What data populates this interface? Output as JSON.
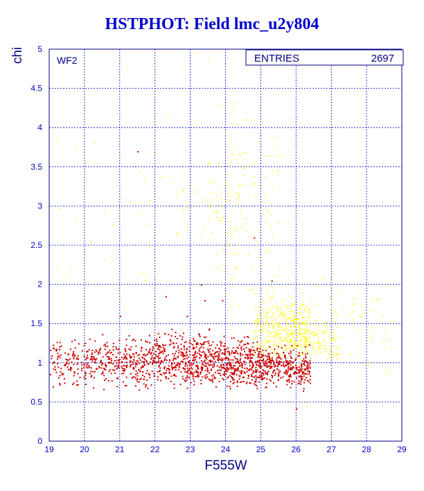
{
  "chart_data": {
    "type": "scatter",
    "title": "HSTPHOT: Field lmc_u2y804",
    "xlabel": "F555W",
    "ylabel": "chi",
    "xlim": [
      19,
      29
    ],
    "ylim": [
      0,
      5
    ],
    "xticks": [
      "19",
      "20",
      "21",
      "22",
      "23",
      "24",
      "25",
      "26",
      "27",
      "28",
      "29"
    ],
    "yticks": [
      "0",
      "0.5",
      "1",
      "1.5",
      "2",
      "2.5",
      "3",
      "3.5",
      "4",
      "4.5",
      "5"
    ],
    "grid": true,
    "panel_label": "WF2",
    "stats_box": {
      "label": "ENTRIES",
      "value": "2697"
    },
    "series": [
      {
        "color": "#cc0000",
        "description_visible": false,
        "clusters": [
          {
            "x": [
              19.0,
              20.0
            ],
            "y": [
              0.6,
              1.4
            ],
            "n": 110
          },
          {
            "x": [
              20.0,
              21.0
            ],
            "y": [
              0.6,
              1.45
            ],
            "n": 150
          },
          {
            "x": [
              21.0,
              22.0
            ],
            "y": [
              0.6,
              1.45
            ],
            "n": 190
          },
          {
            "x": [
              22.0,
              23.0
            ],
            "y": [
              0.55,
              1.5
            ],
            "n": 230
          },
          {
            "x": [
              23.0,
              24.0
            ],
            "y": [
              0.55,
              1.5
            ],
            "n": 270
          },
          {
            "x": [
              24.0,
              25.0
            ],
            "y": [
              0.55,
              1.45
            ],
            "n": 290
          },
          {
            "x": [
              25.0,
              26.4
            ],
            "y": [
              0.6,
              1.3
            ],
            "n": 330
          }
        ],
        "points": [
          [
            21.5,
            3.7
          ],
          [
            23.9,
            1.8
          ],
          [
            24.8,
            2.6
          ],
          [
            23.4,
            1.8
          ],
          [
            22.9,
            1.6
          ],
          [
            22.3,
            1.85
          ],
          [
            23.3,
            2.0
          ],
          [
            25.3,
            2.05
          ],
          [
            26.0,
            0.42
          ],
          [
            21.0,
            1.6
          ]
        ]
      },
      {
        "color": "#ffff00",
        "clusters": [
          {
            "x": [
              24.8,
              26.4
            ],
            "y": [
              0.9,
              2.0
            ],
            "n": 380
          },
          {
            "x": [
              25.8,
              27.2
            ],
            "y": [
              0.9,
              1.7
            ],
            "n": 150
          },
          {
            "x": [
              23.5,
              25.5
            ],
            "y": [
              1.2,
              4.8
            ],
            "n": 120
          },
          {
            "x": [
              26.0,
              28.7
            ],
            "y": [
              0.6,
              2.4
            ],
            "n": 60
          },
          {
            "x": [
              19.2,
              23.5
            ],
            "y": [
              1.1,
              4.9
            ],
            "n": 40
          }
        ],
        "points": [
          [
            23.1,
            4.95
          ],
          [
            23.5,
            4.85
          ],
          [
            21.2,
            4.78
          ],
          [
            24.4,
            3.65
          ],
          [
            24.5,
            3.4
          ],
          [
            24.3,
            3.75
          ],
          [
            24.6,
            3.5
          ],
          [
            23.2,
            4.1
          ],
          [
            22.8,
            3.2
          ],
          [
            19.6,
            2.2
          ],
          [
            21.7,
            2.05
          ],
          [
            22.6,
            3.15
          ],
          [
            21.3,
            3.05
          ],
          [
            25.6,
            3.65
          ],
          [
            25.2,
            2.95
          ],
          [
            24.9,
            2.55
          ],
          [
            26.6,
            1.75
          ],
          [
            28.0,
            1.0
          ],
          [
            28.5,
            0.9
          ],
          [
            26.3,
            0.45
          ],
          [
            21.1,
            1.7
          ],
          [
            19.3,
            1.3
          ],
          [
            24.7,
            4.1
          ],
          [
            23.8,
            4.3
          ],
          [
            22.9,
            2.75
          ],
          [
            24.0,
            2.4
          ],
          [
            25.5,
            2.2
          ],
          [
            24.2,
            2.6
          ]
        ]
      }
    ]
  }
}
